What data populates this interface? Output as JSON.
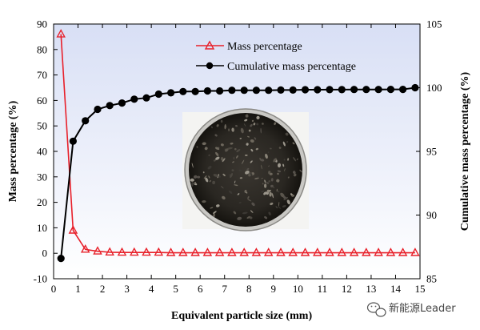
{
  "chart_data": {
    "type": "line",
    "xlabel": "Equivalent particle size  (mm)",
    "ylabel_left": "Mass percentage (%)",
    "ylabel_right": "Cumulative mass percentage (%)",
    "xlim": [
      0,
      15
    ],
    "ylim_left": [
      -10,
      90
    ],
    "ylim_right": [
      85,
      105
    ],
    "x_ticks": [
      "0",
      "1",
      "2",
      "3",
      "4",
      "5",
      "6",
      "7",
      "8",
      "9",
      "10",
      "11",
      "12",
      "13",
      "14",
      "15"
    ],
    "y_ticks_left": [
      "-10",
      "0",
      "10",
      "20",
      "30",
      "40",
      "50",
      "60",
      "70",
      "80",
      "90"
    ],
    "y_ticks_right": [
      "85",
      "90",
      "95",
      "100",
      "105"
    ],
    "legend_position": "top-center",
    "series": [
      {
        "name": "Mass percentage",
        "axis": "left",
        "color": "#e8202a",
        "marker": "open-triangle",
        "x": [
          0.3,
          0.8,
          1.3,
          1.8,
          2.3,
          2.8,
          3.3,
          3.8,
          4.3,
          4.8,
          5.3,
          5.8,
          6.3,
          6.8,
          7.3,
          7.8,
          8.3,
          8.8,
          9.3,
          9.8,
          10.3,
          10.8,
          11.3,
          11.8,
          12.3,
          12.8,
          13.3,
          13.8,
          14.3,
          14.8
        ],
        "values": [
          86,
          9,
          1.5,
          0.8,
          0.4,
          0.3,
          0.3,
          0.3,
          0.3,
          0.2,
          0.2,
          0.2,
          0.2,
          0.2,
          0.2,
          0.2,
          0.2,
          0.2,
          0.2,
          0.2,
          0.2,
          0.2,
          0.2,
          0.2,
          0.2,
          0.2,
          0.2,
          0.2,
          0.2,
          0.2
        ]
      },
      {
        "name": "Cumulative mass percentage",
        "axis": "right",
        "color": "#000000",
        "marker": "filled-circle",
        "x": [
          0.3,
          0.8,
          1.3,
          1.8,
          2.3,
          2.8,
          3.3,
          3.8,
          4.3,
          4.8,
          5.3,
          5.8,
          6.3,
          6.8,
          7.3,
          7.8,
          8.3,
          8.8,
          9.3,
          9.8,
          10.3,
          10.8,
          11.3,
          11.8,
          12.3,
          12.8,
          13.3,
          13.8,
          14.3,
          14.8
        ],
        "values": [
          86.6,
          95.8,
          97.4,
          98.3,
          98.6,
          98.8,
          99.1,
          99.2,
          99.5,
          99.6,
          99.7,
          99.7,
          99.75,
          99.75,
          99.8,
          99.8,
          99.8,
          99.8,
          99.82,
          99.82,
          99.84,
          99.84,
          99.85,
          99.85,
          99.86,
          99.86,
          99.86,
          99.87,
          99.87,
          100
        ]
      }
    ],
    "inset_image": "photo-of-dark-granular-powder-in-petri-dish"
  },
  "colors": {
    "plot_background_top": "#d8dff5",
    "plot_background_bottom": "#ffffff"
  },
  "watermark": {
    "icon": "wechat-icon",
    "text": "新能源Leader"
  }
}
